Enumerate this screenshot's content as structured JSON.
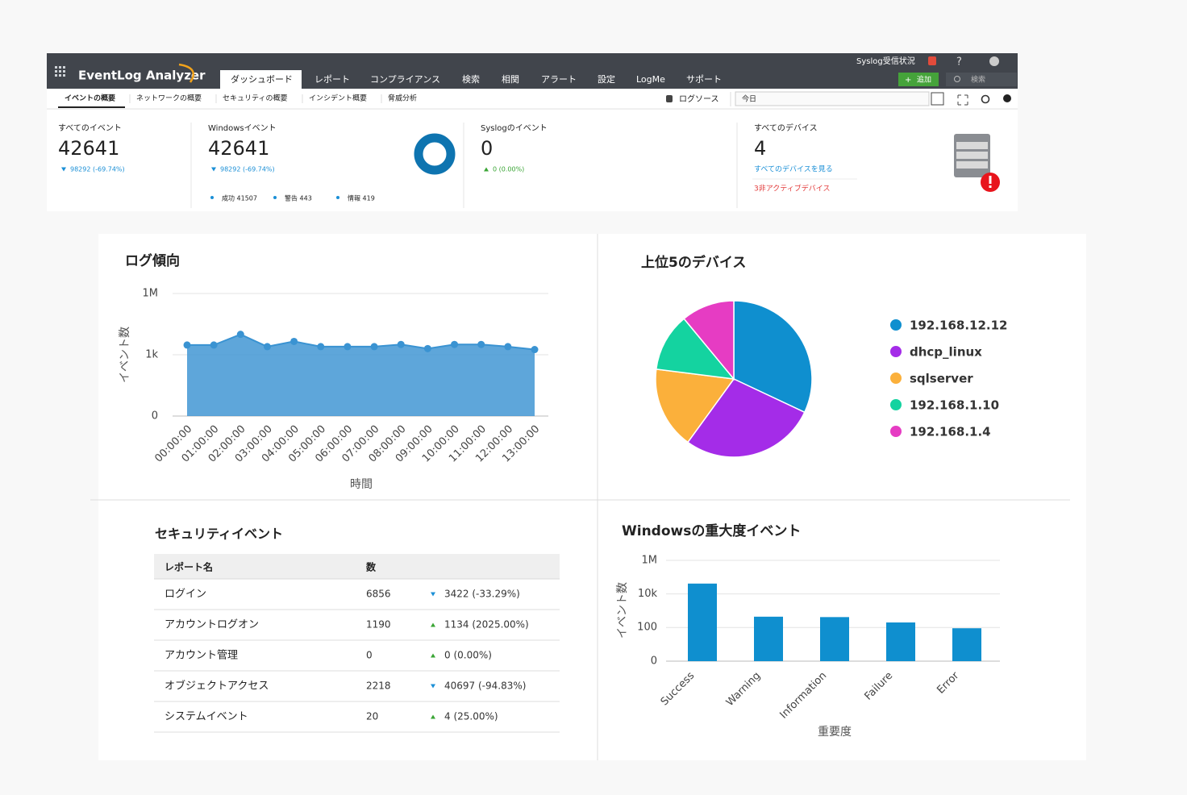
{
  "header": {
    "logo": "EventLog Analyzer",
    "tabs": [
      "ダッシュボード",
      "レポート",
      "コンプライアンス",
      "検索",
      "相関",
      "アラート",
      "設定",
      "LogMe",
      "サポート"
    ],
    "syslog_status": "Syslog受信状況",
    "help": "?",
    "add_button": "追加",
    "search": "検索"
  },
  "subnav": {
    "tabs": [
      "イベントの概要",
      "ネットワークの概要",
      "セキュリティの概要",
      "インシデント概要",
      "脅威分析"
    ],
    "log_source": "ログソース",
    "date": "今日"
  },
  "summary": [
    {
      "title": "すべてのイベント",
      "count": 42641,
      "change": "98292 (-69.74%)",
      "trend": "down"
    },
    {
      "title": "Windowsイベント",
      "count": 42641,
      "change": "98292 (-69.74%)",
      "trend": "down",
      "breakdown": [
        "成功 41507",
        "警告 443",
        "情報 419"
      ]
    },
    {
      "title": "Syslogのイベント",
      "count": 0,
      "change": "0 (0.00%)",
      "trend": "up"
    },
    {
      "title": "すべてのデバイス",
      "count": 4,
      "link": "すべてのデバイスを見る",
      "inactive": "3非アクティブデバイス"
    }
  ],
  "security_table": {
    "title": "セキュリティイベント",
    "columns": [
      "レポート名",
      "数"
    ],
    "rows": [
      {
        "name": "ログイン",
        "count": 6856,
        "change": "3422 (-33.29%)",
        "trend": "down"
      },
      {
        "name": "アカウントログオン",
        "count": 1190,
        "change": "1134 (2025.00%)",
        "trend": "up"
      },
      {
        "name": "アカウント管理",
        "count": 0,
        "change": "0 (0.00%)",
        "trend": "up"
      },
      {
        "name": "オブジェクトアクセス",
        "count": 2218,
        "change": "40697 (-94.83%)",
        "trend": "down"
      },
      {
        "name": "システムイベント",
        "count": 20,
        "change": "4 (25.00%)",
        "trend": "up"
      }
    ]
  },
  "chart_data": [
    {
      "type": "area",
      "title": "ログ傾向",
      "x_label": "時間",
      "y_label": "イベント数",
      "categories": [
        "00:00:00",
        "01:00:00",
        "02:00:00",
        "03:00:00",
        "04:00:00",
        "05:00:00",
        "06:00:00",
        "07:00:00",
        "08:00:00",
        "09:00:00",
        "10:00:00",
        "11:00:00",
        "12:00:00",
        "13:00:00"
      ],
      "values": [
        3000,
        3000,
        10000,
        2500,
        4500,
        2500,
        2500,
        2500,
        3200,
        2000,
        3200,
        3200,
        2500,
        1800
      ],
      "color": "#3a93d2",
      "ylim": [
        0,
        1000000
      ],
      "yticks": [
        0,
        {
          "value": 1000,
          "label": "1k"
        },
        {
          "value": 1000000,
          "label": "1M"
        }
      ],
      "log_scale": true,
      "grid": true
    },
    {
      "type": "pie",
      "title": "上位5のデバイス",
      "categories": [
        "192.168.12.12",
        "dhcp_linux",
        "sqlserver",
        "192.168.1.10",
        "192.168.1.4"
      ],
      "values": [
        32,
        28,
        17,
        12,
        11
      ],
      "colors": [
        "#0f8fcf",
        "#a42ce8",
        "#fbb03b",
        "#14d3a0",
        "#e63cc3"
      ],
      "legend": "right"
    },
    {
      "type": "bar",
      "title": "Windowsの重大度イベント",
      "x_label": "重要度",
      "y_label": "イベント数",
      "categories": [
        "Success",
        "Warning",
        "Information",
        "Failure",
        "Error"
      ],
      "values": [
        41507,
        443,
        419,
        200,
        90
      ],
      "color": "#0f8fcf",
      "ylim": [
        0,
        1000000
      ],
      "yticks": [
        0,
        100,
        {
          "value": 10000,
          "label": "10k"
        },
        {
          "value": 1000000,
          "label": "1M"
        }
      ],
      "log_scale": true,
      "grid": true
    }
  ]
}
